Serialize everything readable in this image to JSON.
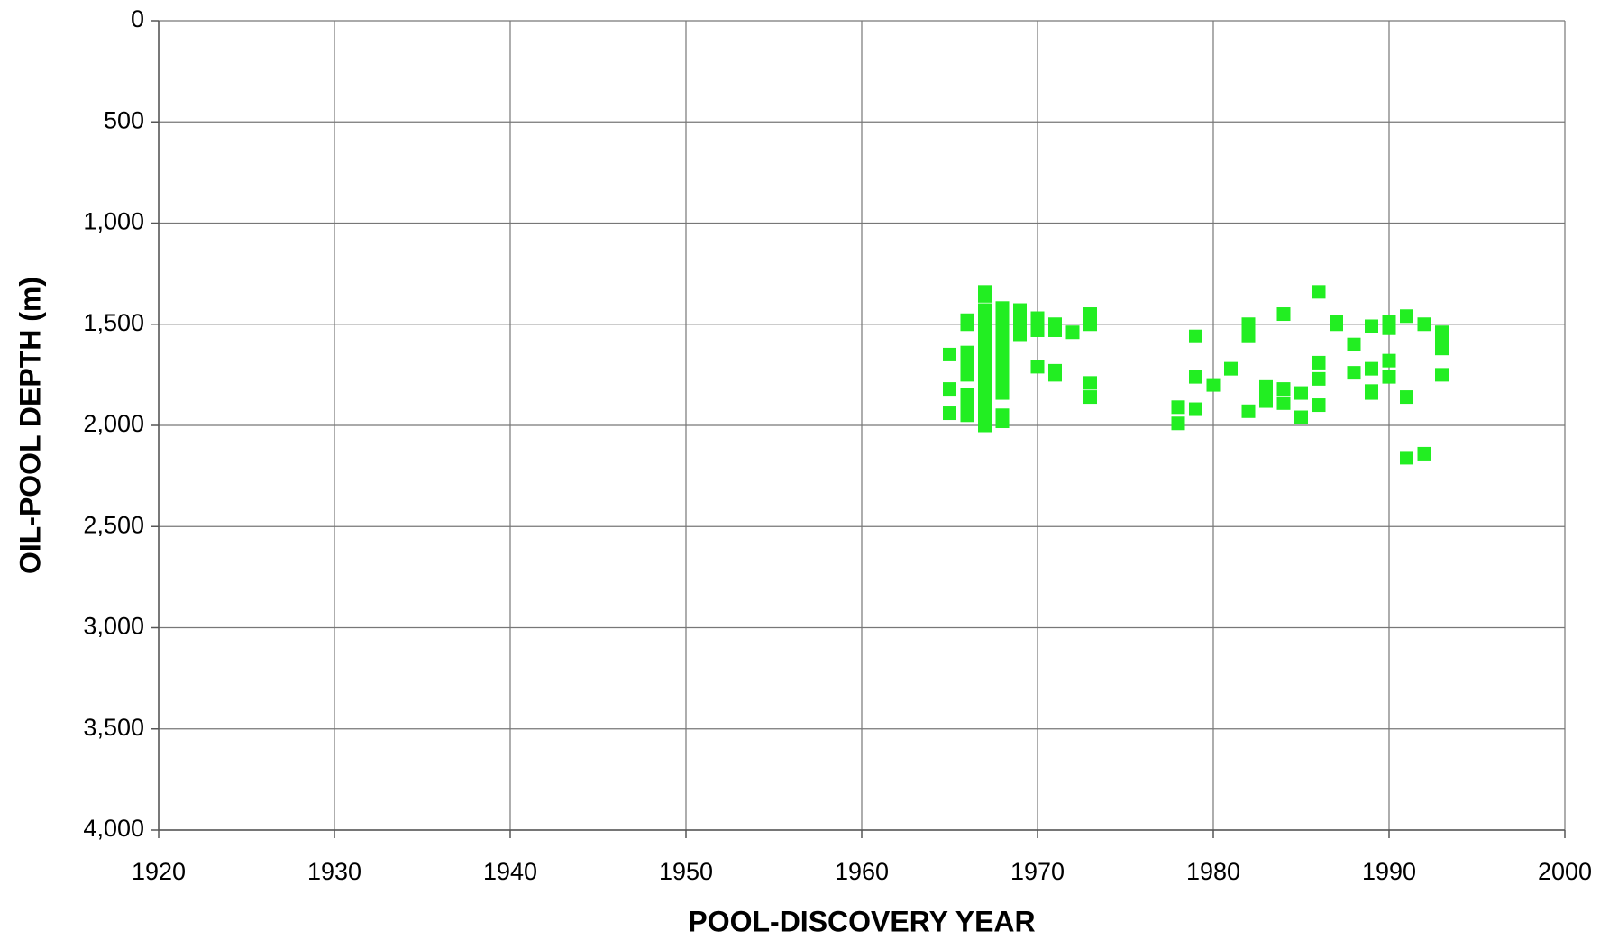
{
  "chart_data": {
    "type": "scatter",
    "xlabel": "POOL-DISCOVERY YEAR",
    "ylabel": "OIL-POOL DEPTH (m)",
    "color": "#22ee22",
    "grid": true,
    "y_inverted": true,
    "xlim": [
      1920,
      2000
    ],
    "xticks": [
      1920,
      1930,
      1940,
      1950,
      1960,
      1970,
      1980,
      1990,
      2000
    ],
    "ylim": [
      0,
      4000
    ],
    "yticks": [
      0,
      500,
      {
        "value": 1000,
        "label": "1,000"
      },
      {
        "value": 1500,
        "label": "1,500"
      },
      {
        "value": 2000,
        "label": "2,000"
      },
      {
        "value": 2500,
        "label": "2,500"
      },
      {
        "value": 3000,
        "label": "3,000"
      },
      {
        "value": 3500,
        "label": "3,500"
      },
      {
        "value": 4000,
        "label": "4,000"
      }
    ],
    "x": [
      1965,
      1965,
      1965,
      1966,
      1966,
      1966,
      1966,
      1966,
      1966,
      1966,
      1966,
      1966,
      1966,
      1967,
      1967,
      1967,
      1967,
      1967,
      1967,
      1967,
      1967,
      1967,
      1967,
      1967,
      1967,
      1967,
      1967,
      1967,
      1967,
      1967,
      1968,
      1968,
      1968,
      1968,
      1968,
      1968,
      1968,
      1968,
      1968,
      1968,
      1968,
      1968,
      1968,
      1969,
      1969,
      1969,
      1969,
      1970,
      1970,
      1970,
      1970,
      1971,
      1971,
      1971,
      1971,
      1972,
      1973,
      1973,
      1973,
      1973,
      1978,
      1978,
      1979,
      1979,
      1979,
      1980,
      1981,
      1982,
      1982,
      1982,
      1983,
      1983,
      1983,
      1984,
      1984,
      1984,
      1985,
      1985,
      1986,
      1986,
      1986,
      1986,
      1987,
      1987,
      1988,
      1988,
      1989,
      1989,
      1989,
      1989,
      1990,
      1990,
      1990,
      1990,
      1991,
      1991,
      1991,
      1992,
      1992,
      1993,
      1993,
      1993,
      1993
    ],
    "values": [
      1650,
      1820,
      1940,
      1480,
      1500,
      1640,
      1680,
      1720,
      1750,
      1850,
      1880,
      1920,
      1950,
      1340,
      1360,
      1430,
      1480,
      1520,
      1560,
      1600,
      1640,
      1680,
      1720,
      1760,
      1800,
      1840,
      1880,
      1920,
      1960,
      2000,
      1420,
      1460,
      1500,
      1540,
      1580,
      1620,
      1660,
      1700,
      1740,
      1780,
      1840,
      1950,
      1980,
      1430,
      1480,
      1520,
      1550,
      1470,
      1500,
      1530,
      1710,
      1500,
      1530,
      1730,
      1750,
      1540,
      1450,
      1500,
      1790,
      1860,
      1910,
      1990,
      1560,
      1760,
      1920,
      1800,
      1720,
      1500,
      1560,
      1930,
      1810,
      1850,
      1880,
      1450,
      1820,
      1890,
      1840,
      1960,
      1340,
      1690,
      1770,
      1900,
      1490,
      1500,
      1600,
      1740,
      1510,
      1720,
      1830,
      1840,
      1490,
      1520,
      1680,
      1760,
      1460,
      1860,
      2160,
      1500,
      2140,
      1540,
      1580,
      1620,
      1750
    ]
  }
}
